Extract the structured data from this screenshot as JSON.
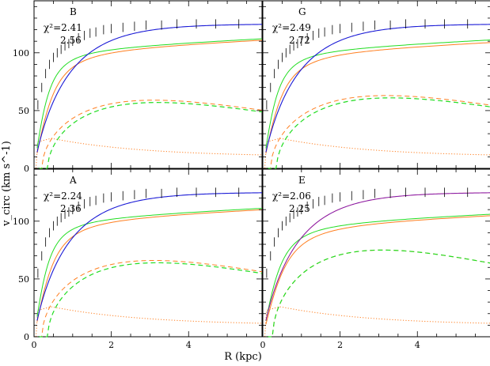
{
  "chart_data": {
    "type": "line",
    "xlabel": "R (kpc)",
    "ylabel": "v_circ (km s^-1)",
    "xlim": [
      0,
      5.9
    ],
    "ylim": [
      0,
      145
    ],
    "x_ticks": [
      "0",
      "2",
      "4"
    ],
    "y_ticks": [
      "0",
      "50",
      "100"
    ],
    "grid": false,
    "line_colors": {
      "total": "#1a1ad6",
      "green": "#22dd22",
      "orange": "#ff7f20",
      "data": "#000000",
      "magenta": "#cc2288"
    },
    "panels": [
      {
        "label": "B",
        "chi2_label": "χ²=2.41",
        "chi2_alt": "2.56",
        "total_vmax": 125,
        "green_total_vmax": 113,
        "green_total_rc": 0.45,
        "orange_total_vmax": 112,
        "orange_total_rc": 0.6,
        "green_halo_peak": 57,
        "green_halo_rpeak": 3.2,
        "green_halo_r0": 0.35,
        "orange_halo_peak": 59,
        "orange_halo_rpeak": 3.1,
        "orange_halo_r0": 0.2,
        "disk_peak": 26,
        "disk_rpeak": 0.45,
        "disk_end": 10
      },
      {
        "label": "G",
        "chi2_label": "χ²=2.49",
        "chi2_alt": "2.72",
        "total_vmax": 125,
        "green_total_vmax": 112,
        "green_total_rc": 0.45,
        "orange_total_vmax": 110,
        "orange_total_rc": 0.6,
        "green_halo_peak": 61,
        "green_halo_rpeak": 3.3,
        "green_halo_r0": 0.35,
        "orange_halo_peak": 63,
        "orange_halo_rpeak": 3.2,
        "orange_halo_r0": 0.2,
        "disk_peak": 26,
        "disk_rpeak": 0.45,
        "disk_end": 10
      },
      {
        "label": "A",
        "chi2_label": "χ²=2.24",
        "chi2_alt": "2.36",
        "total_vmax": 125,
        "green_total_vmax": 112,
        "green_total_rc": 0.45,
        "orange_total_vmax": 111,
        "orange_total_rc": 0.6,
        "green_halo_peak": 64,
        "green_halo_rpeak": 3.2,
        "green_halo_r0": 0.35,
        "orange_halo_peak": 66,
        "orange_halo_rpeak": 3.1,
        "orange_halo_r0": 0.2,
        "disk_peak": 26,
        "disk_rpeak": 0.45,
        "disk_end": 10
      },
      {
        "label": "E",
        "chi2_label": "χ²=2.06",
        "chi2_alt": "2.25",
        "total_vmax": 125,
        "green_total_vmax": 107,
        "green_total_rc": 0.55,
        "orange_total_vmax": 106,
        "orange_total_rc": 0.7,
        "green_halo_peak": 75,
        "green_halo_rpeak": 3.1,
        "green_halo_r0": 0.25,
        "orange_halo_peak": 75,
        "orange_halo_rpeak": 3.1,
        "orange_halo_r0": 0.25,
        "disk_peak": 26,
        "disk_rpeak": 0.45,
        "disk_end": 10
      }
    ],
    "observed_points": {
      "x": [
        0.1,
        0.2,
        0.3,
        0.4,
        0.5,
        0.6,
        0.7,
        0.8,
        0.9,
        1.0,
        1.15,
        1.3,
        1.45,
        1.6,
        1.8,
        2.0,
        2.3,
        2.6,
        2.9,
        3.3,
        3.7,
        4.2,
        4.7,
        5.3
      ],
      "y": [
        55,
        70,
        82,
        90,
        96,
        100,
        103,
        106,
        108,
        110,
        113,
        115,
        117,
        118,
        120,
        121,
        122,
        123,
        124,
        124,
        125,
        125,
        125,
        125
      ]
    }
  }
}
